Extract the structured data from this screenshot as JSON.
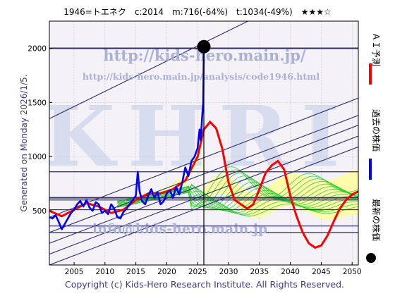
{
  "header": {
    "title": "1946=トエネク　c:2014　m:716(-64%)　t:1034(-49%)　★★★☆"
  },
  "watermarks": {
    "url_main": "http://kids-hero.main.jp/",
    "url_analysis": "http://kids-hero.main.jp/analysis/code1946.html",
    "big": "KHRI",
    "email": "info@kids-hero.main.jp"
  },
  "side_text": "Generated on Monday 2026/1/5.",
  "footer": "Copyright (c) Kids-Hero Research Institute. All Rights Reserved.",
  "legend": [
    {
      "label": "ＡＩ予測",
      "color": "#ff0000"
    },
    {
      "label": "過去の株価",
      "color": "#0000ff"
    },
    {
      "label": "最新の株価",
      "color": "#000000"
    }
  ],
  "colors": {
    "ai": "#ff0000",
    "past": "#0000ff",
    "ens": "#2ecc2e",
    "band": "#ffff99",
    "lines": "#2d2d6b",
    "frame": "#000000"
  },
  "chart_data": {
    "type": "line",
    "xlim": [
      2001,
      2051
    ],
    "ylim": [
      0,
      2250
    ],
    "xticks": [
      2005,
      2010,
      2015,
      2020,
      2025,
      2030,
      2035,
      2040,
      2045,
      2050
    ],
    "yticks": [
      500,
      1000,
      1500,
      2000
    ],
    "latest": {
      "x": 2026.0,
      "y": 2014
    },
    "cursor_x": 2026.0,
    "hlines": [
      2000,
      860,
      620,
      600,
      510,
      360,
      300
    ],
    "trend_lines": [
      {
        "p1": [
          2001,
          1350
        ],
        "p2": [
          2051,
          2750
        ]
      },
      {
        "p1": [
          2001,
          440
        ],
        "p2": [
          2051,
          1540
        ]
      },
      {
        "p1": [
          2001,
          300
        ],
        "p2": [
          2051,
          1380
        ]
      },
      {
        "p1": [
          2001,
          200
        ],
        "p2": [
          2051,
          1290
        ]
      },
      {
        "p1": [
          2001,
          100
        ],
        "p2": [
          2051,
          1190
        ]
      },
      {
        "p1": [
          2001,
          0
        ],
        "p2": [
          2051,
          1090
        ]
      }
    ],
    "series": [
      {
        "name": "過去の株価",
        "x": [
          2001.0,
          2001.5,
          2002.0,
          2002.5,
          2003.0,
          2003.5,
          2004.0,
          2004.5,
          2005.0,
          2005.5,
          2006.0,
          2006.5,
          2007.0,
          2007.5,
          2008.0,
          2008.5,
          2009.0,
          2009.5,
          2010.0,
          2010.5,
          2011.0,
          2011.5,
          2012.0,
          2012.5,
          2013.0,
          2013.5,
          2014.0,
          2014.5,
          2015.0,
          2015.3,
          2015.6,
          2016.0,
          2016.5,
          2017.0,
          2017.5,
          2018.0,
          2018.5,
          2019.0,
          2019.5,
          2020.0,
          2020.5,
          2021.0,
          2021.5,
          2022.0,
          2022.5,
          2023.0,
          2023.5,
          2024.0,
          2024.5,
          2025.0,
          2025.3,
          2025.5,
          2025.7,
          2025.9,
          2026.0
        ],
        "y": [
          440,
          430,
          460,
          400,
          330,
          380,
          430,
          480,
          510,
          560,
          590,
          540,
          600,
          530,
          500,
          580,
          560,
          480,
          500,
          470,
          560,
          520,
          440,
          430,
          490,
          520,
          560,
          600,
          640,
          860,
          680,
          590,
          560,
          640,
          700,
          620,
          670,
          560,
          590,
          660,
          690,
          620,
          720,
          650,
          760,
          900,
          820,
          960,
          1000,
          1080,
          1250,
          1150,
          1350,
          1500,
          2014
        ]
      },
      {
        "name": "ＡＩ予測",
        "x": [
          2001.0,
          2003.0,
          2005.0,
          2007.0,
          2009.0,
          2011.0,
          2013.0,
          2015.0,
          2017.0,
          2019.0,
          2021.0,
          2023.0,
          2025.0,
          2026.0,
          2027.0,
          2028.0,
          2029.0,
          2030.0,
          2031.0,
          2032.0,
          2033.0,
          2034.0,
          2035.0,
          2036.0,
          2037.0,
          2038.0,
          2039.0,
          2040.0,
          2041.0,
          2042.0,
          2043.0,
          2044.0,
          2045.0,
          2046.0,
          2047.0,
          2048.0,
          2049.0,
          2050.0,
          2051.0
        ],
        "y": [
          500,
          450,
          510,
          570,
          540,
          480,
          510,
          600,
          660,
          660,
          700,
          780,
          1000,
          1250,
          1320,
          1260,
          1070,
          760,
          600,
          560,
          520,
          560,
          700,
          850,
          920,
          960,
          880,
          640,
          450,
          300,
          200,
          160,
          180,
          270,
          400,
          520,
          600,
          650,
          680
        ]
      }
    ]
  }
}
